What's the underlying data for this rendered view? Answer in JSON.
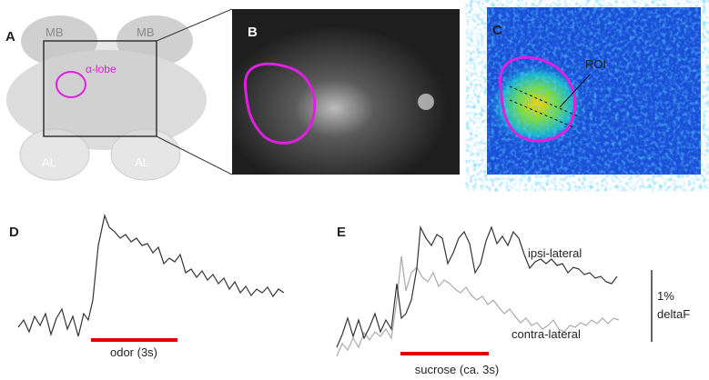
{
  "panels": {
    "a": {
      "label": "A",
      "mb_left": "MB",
      "mb_right": "MB",
      "lobe": "α-lobe",
      "al_left": "AL",
      "al_right": "AL"
    },
    "b": {
      "label": "B"
    },
    "c": {
      "label": "C",
      "roi": "ROI"
    },
    "d": {
      "label": "D",
      "stimulus": "odor (3s)"
    },
    "e": {
      "label": "E",
      "ipsi": "ipsi-lateral",
      "contra": "contra-lateral",
      "stimulus": "sucrose (ca. 3s)",
      "scale_value": "1%",
      "scale_unit": "deltaF"
    }
  }
}
